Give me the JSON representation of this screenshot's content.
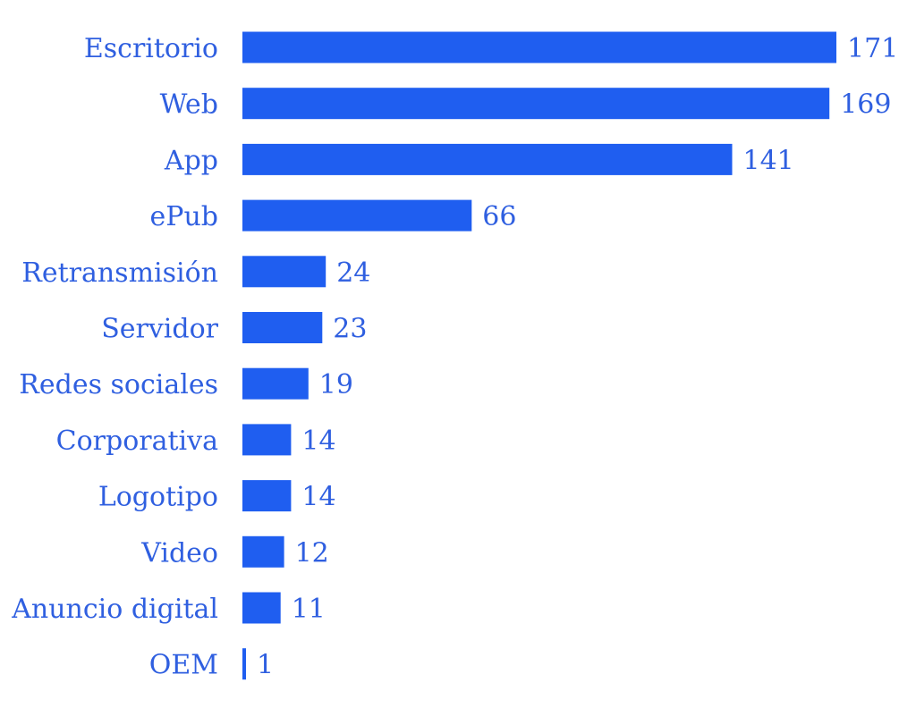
{
  "colors": {
    "bar": "#1F5EF0",
    "text": "#2F5FE0"
  },
  "chart_data": {
    "type": "bar",
    "orientation": "horizontal",
    "categories": [
      "Escritorio",
      "Web",
      "App",
      "ePub",
      "Retransmisión",
      "Servidor",
      "Redes sociales",
      "Corporativa",
      "Logotipo",
      "Video",
      "Anuncio digital",
      "OEM"
    ],
    "values": [
      171,
      169,
      141,
      66,
      24,
      23,
      19,
      14,
      14,
      12,
      11,
      1
    ],
    "title": "",
    "xlabel": "",
    "ylabel": "",
    "xlim": [
      0,
      171
    ],
    "grid": false,
    "data_labels": true
  }
}
